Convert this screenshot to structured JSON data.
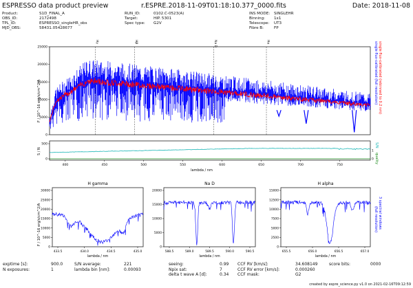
{
  "header": {
    "app_title": "ESPRESSO data product preview",
    "file_title": "r.ESPRE.2018-11-09T01:18:10.377_0000.fits",
    "date": "Date: 2018-11-08"
  },
  "meta": {
    "col1": [
      {
        "k": "Product:",
        "v": "S1D_FINAL_A"
      },
      {
        "k": "OBS_ID:",
        "v": "2172498"
      },
      {
        "k": "TPL_ID:",
        "v": "ESPRESSO_singleHR_obs"
      },
      {
        "k": "MJD_OBS:",
        "v": "58431.05428677"
      }
    ],
    "col2": [
      {
        "k": "RUN_ID:",
        "v": "0102.C-0523(A)"
      },
      {
        "k": "Target:",
        "v": "HIP. 5301"
      },
      {
        "k": "Spec type:",
        "v": "G2V"
      }
    ],
    "col3": [
      {
        "k": "INS MODE:",
        "v": "SINGLEHR"
      },
      {
        "k": "Binning:",
        "v": "1x1"
      },
      {
        "k": "Telescope:",
        "v": "UT3"
      },
      {
        "k": "Fibre B:",
        "v": "FP"
      }
    ]
  },
  "main_plot": {
    "ylabel": "F / 10^-16 erg/s/cm^2/A",
    "right_label_red": "single flux-calibrated (rebinned to 0.2 nm)",
    "right_label_blue": "single flux-calibrated (full resolution)",
    "ymax": 25000,
    "yticks": [
      "0",
      "5000",
      "10000",
      "15000",
      "20000",
      "25000"
    ],
    "line_markers": [
      "Hγ",
      "Hβ",
      "Na D",
      "Hα"
    ],
    "colors": {
      "blue": "#0000ff",
      "red": "#ff0000",
      "cyan": "#17b5b5",
      "green": "#1c8a1c"
    }
  },
  "sn_plot": {
    "ylabel": "S / N",
    "yticks": [
      "0",
      "500"
    ],
    "right_label_sn": "S/N",
    "right_label_quality": "quality",
    "qual_ticks": [
      "0",
      "1"
    ],
    "xlabel": "lambda / nm",
    "xticks": [
      "400",
      "450",
      "500",
      "550",
      "600",
      "650",
      "700",
      "750"
    ]
  },
  "sub_plots": {
    "ylabel": "F / 10^-16 erg/s/cm^2/A",
    "xlabel": "lambda / nm",
    "right_label": "3 spectral windows",
    "right_label2": "(full resolution)",
    "panels": [
      {
        "title": "H gamma",
        "xticks": [
          "433.5",
          "434.0",
          "434.5",
          "435.0"
        ],
        "yticks": [
          "0",
          "5000",
          "10000",
          "15000",
          "20000",
          "25000",
          "30000"
        ]
      },
      {
        "title": "Na D",
        "xticks": [
          "588.5",
          "589.0",
          "589.5",
          "590.0",
          "590.5"
        ],
        "yticks": [
          "0",
          "5000",
          "10000",
          "15000",
          "20000"
        ]
      },
      {
        "title": "H alpha",
        "xticks": [
          "655.5",
          "656.0",
          "656.5",
          "657.0"
        ],
        "yticks": [
          "0",
          "2500",
          "5000",
          "7500",
          "10000",
          "12500",
          "15000"
        ]
      }
    ]
  },
  "footer": {
    "col1": [
      {
        "k": "exptime [s]:",
        "v": "900.0"
      },
      {
        "k": "N exposures:",
        "v": "1"
      }
    ],
    "col2": [
      {
        "k": "S/N average:",
        "v": "221"
      },
      {
        "k": "lambda bin [nm]:",
        "v": "0.00093"
      }
    ],
    "col3": [
      {
        "k": "seeing:",
        "v": "0.99"
      },
      {
        "k": "Npix sat:",
        "v": "7"
      },
      {
        "k": "delta t wave A [d]:",
        "v": "0.34"
      }
    ],
    "col4": [
      {
        "k": "CCF RV [km/s]:",
        "v": "34.608149"
      },
      {
        "k": "CCF RV error [km/s]:",
        "v": "0.000260"
      },
      {
        "k": "CCF mask:",
        "v": "G2"
      }
    ],
    "col5": [
      {
        "k": "score bits:",
        "v": "0000"
      }
    ],
    "credit": "created by espre_science.py v1.0 on 2021-02-16T09:12:59"
  }
}
